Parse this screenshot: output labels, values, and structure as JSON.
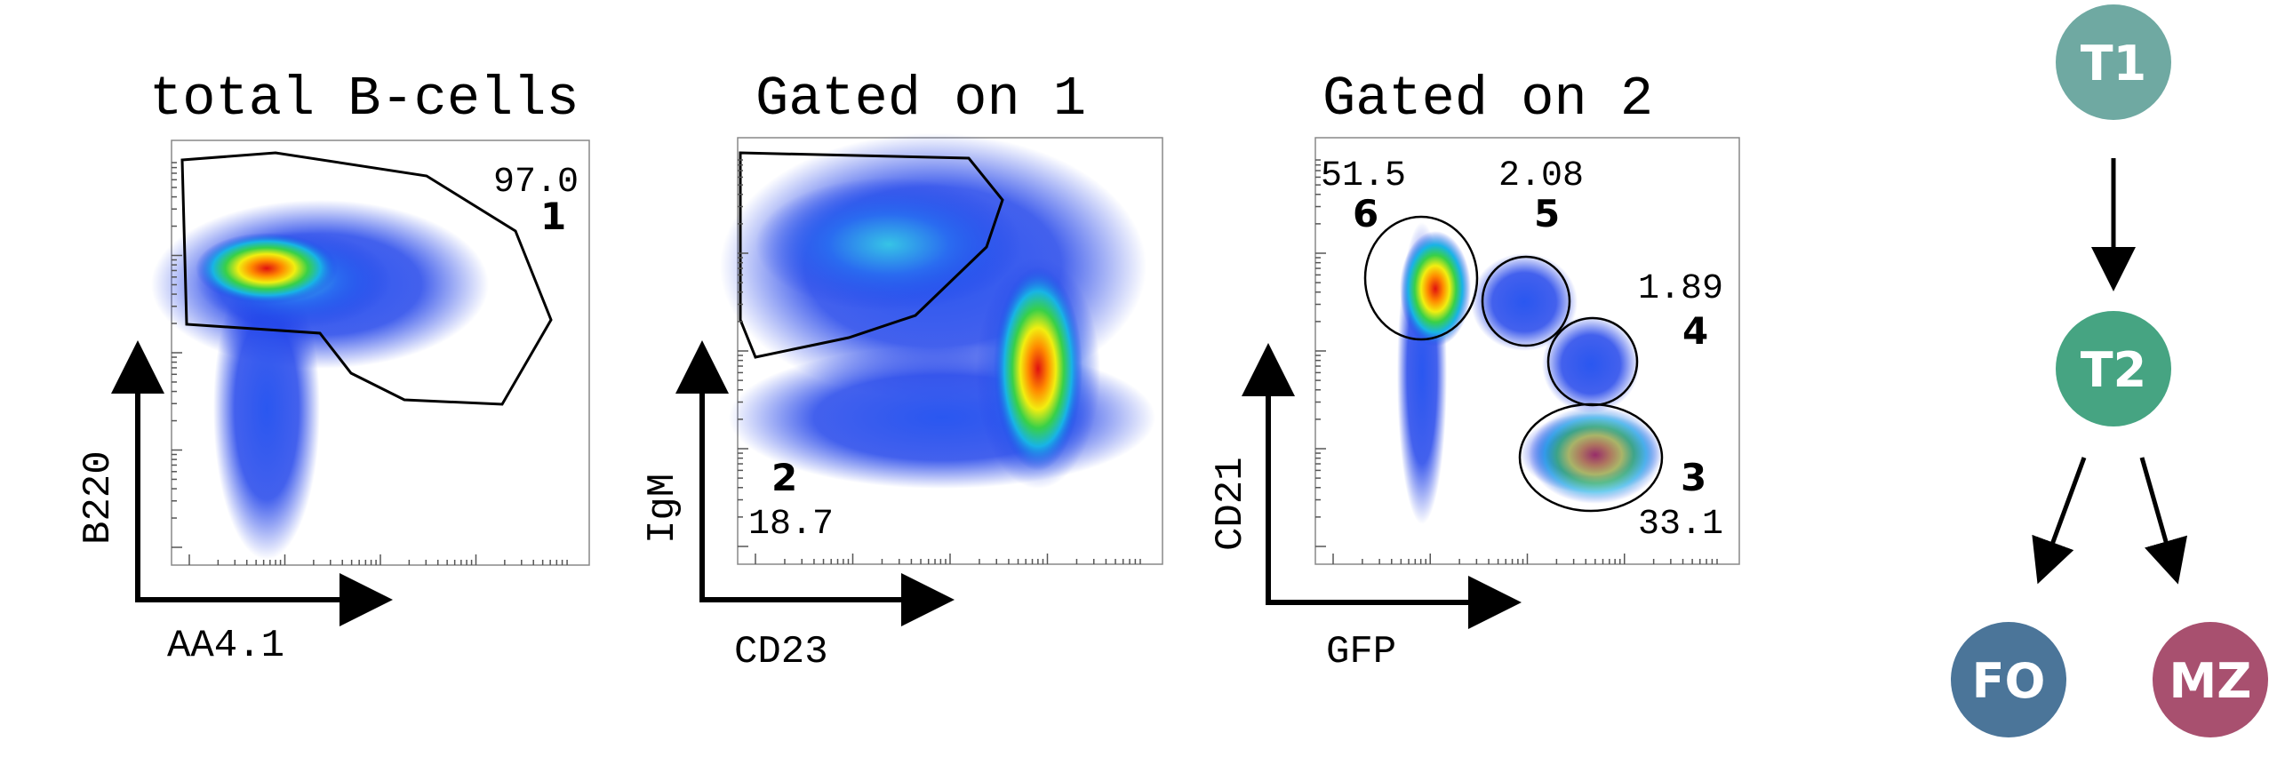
{
  "colors": {
    "T1": "#6fa9a2",
    "T2": "#46a482",
    "FO": "#4b7599",
    "MZ": "#a8506f"
  },
  "panels": [
    {
      "title": "total B-cells",
      "x_axis": "AA4.1",
      "y_axis": "B220",
      "gates": [
        {
          "number": "1",
          "percent": "97.0"
        }
      ]
    },
    {
      "title": "Gated on 1",
      "x_axis": "CD23",
      "y_axis": "IgM",
      "gates": [
        {
          "number": "2",
          "percent": "18.7"
        }
      ]
    },
    {
      "title": "Gated on 2",
      "x_axis": "GFP",
      "y_axis": "CD21",
      "gates": [
        {
          "number": "6",
          "percent": "51.5"
        },
        {
          "number": "5",
          "percent": "2.08"
        },
        {
          "number": "4",
          "percent": "1.89"
        },
        {
          "number": "3",
          "percent": "33.1"
        }
      ]
    }
  ],
  "lineage": {
    "nodes": [
      "T1",
      "T2",
      "FO",
      "MZ"
    ]
  }
}
